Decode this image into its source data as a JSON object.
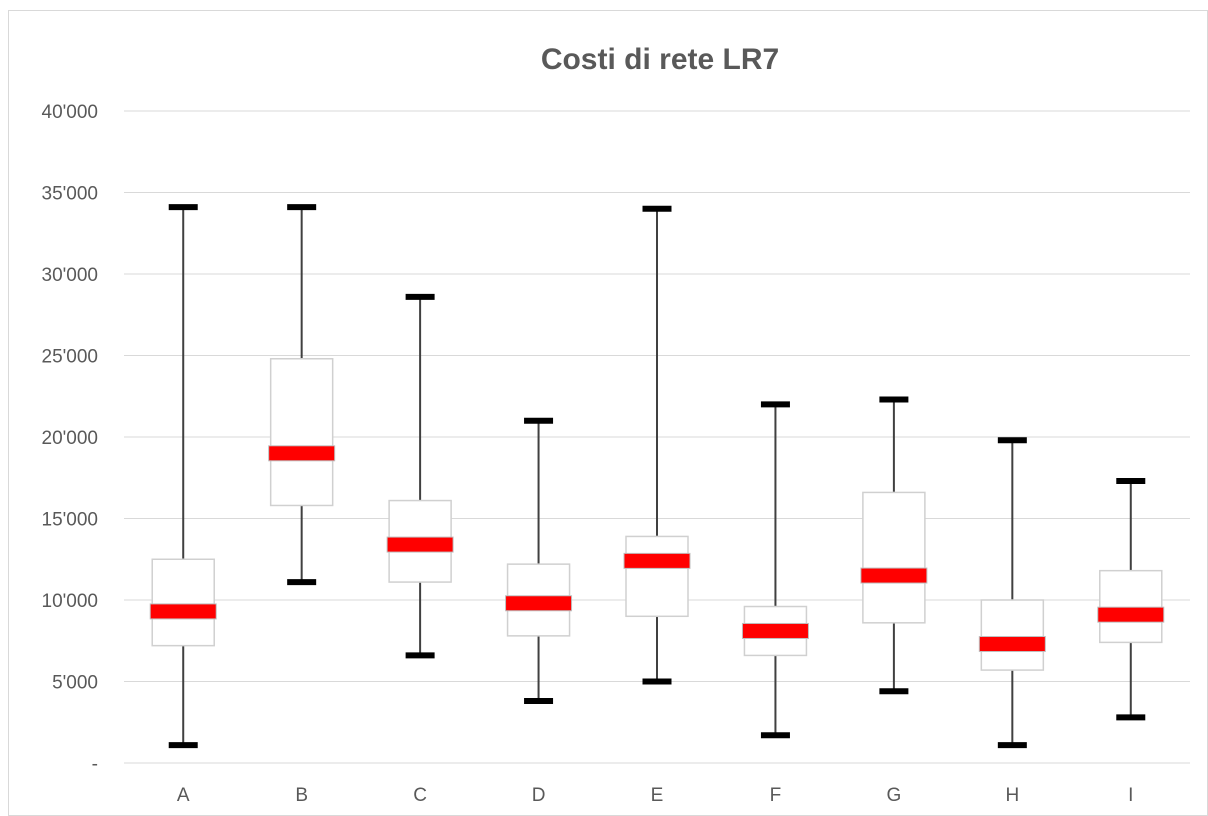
{
  "chart_data": {
    "type": "boxplot",
    "title": "Costi di rete LR7",
    "xlabel": "",
    "ylabel": "",
    "ylim": [
      0,
      40000
    ],
    "y_ticks": [
      {
        "value": 0,
        "label": "-"
      },
      {
        "value": 5000,
        "label": "5'000"
      },
      {
        "value": 10000,
        "label": "10'000"
      },
      {
        "value": 15000,
        "label": "15'000"
      },
      {
        "value": 20000,
        "label": "20'000"
      },
      {
        "value": 25000,
        "label": "25'000"
      },
      {
        "value": 30000,
        "label": "30'000"
      },
      {
        "value": 35000,
        "label": "35'000"
      },
      {
        "value": 40000,
        "label": "40'000"
      }
    ],
    "grid": true,
    "colors": {
      "median": "#ff0000",
      "whisker_cap": "#000000",
      "box_border": "#d0d0d0",
      "gridline": "#d9d9d9",
      "text": "#595959"
    },
    "categories": [
      "A",
      "B",
      "C",
      "D",
      "E",
      "F",
      "G",
      "H",
      "I"
    ],
    "boxes": [
      {
        "category": "A",
        "min": 1100,
        "q1": 7200,
        "median": 9300,
        "q3": 12500,
        "max": 34100
      },
      {
        "category": "B",
        "min": 11100,
        "q1": 15800,
        "median": 19000,
        "q3": 24800,
        "max": 34100
      },
      {
        "category": "C",
        "min": 6600,
        "q1": 11100,
        "median": 13400,
        "q3": 16100,
        "max": 28600
      },
      {
        "category": "D",
        "min": 3800,
        "q1": 7800,
        "median": 9800,
        "q3": 12200,
        "max": 21000
      },
      {
        "category": "E",
        "min": 5000,
        "q1": 9000,
        "median": 12400,
        "q3": 13900,
        "max": 34000
      },
      {
        "category": "F",
        "min": 1700,
        "q1": 6600,
        "median": 8100,
        "q3": 9600,
        "max": 22000
      },
      {
        "category": "G",
        "min": 4400,
        "q1": 8600,
        "median": 11500,
        "q3": 16600,
        "max": 22300
      },
      {
        "category": "H",
        "min": 1100,
        "q1": 5700,
        "median": 7300,
        "q3": 10000,
        "max": 19800
      },
      {
        "category": "I",
        "min": 2800,
        "q1": 7400,
        "median": 9100,
        "q3": 11800,
        "max": 17300
      }
    ]
  }
}
